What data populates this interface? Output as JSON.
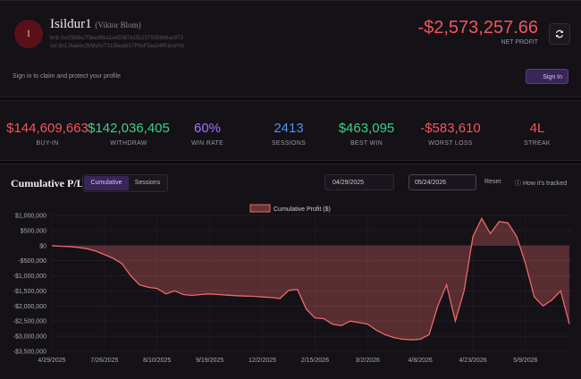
{
  "header": {
    "avatar": "I",
    "name": "Isildur1",
    "real_name": "(Viktor Blom)",
    "address_1": "bnb 0xcf3bf9a7f3eed9ba1ee5387e15c2379388b6ac873",
    "address_2": "sol 8n1J6aebv2bMy5nT315boabS7P9sF5ea34Ri1kxrHd",
    "net_profit": "-$2,573,257.66",
    "net_profit_label": "NET PROFIT",
    "claim_text": "Sign in to claim and protect your profile",
    "sign_in": "Sign In"
  },
  "stats": [
    {
      "value": "$144,609,663",
      "label": "BUY-IN",
      "color": "#f0565a"
    },
    {
      "value": "$142,036,405",
      "label": "WITHDRAW",
      "color": "#3ecf83"
    },
    {
      "value": "60%",
      "label": "WIN RATE",
      "color": "#a872f5"
    },
    {
      "value": "2413",
      "label": "SESSIONS",
      "color": "#4f8ef0"
    },
    {
      "value": "$463,095",
      "label": "BEST WIN",
      "color": "#3ecf83"
    },
    {
      "value": "-$583,610",
      "label": "WORST LOSS",
      "color": "#f0565a"
    },
    {
      "value": "4L",
      "label": "STREAK",
      "color": "#f0565a"
    }
  ],
  "panel": {
    "title": "Cumulative P/L",
    "tabs": [
      "Cumulative",
      "Sessions"
    ],
    "date_from": "04/29/2025",
    "date_to": "05/24/2026",
    "reset": "Reset",
    "help": "How it's tracked"
  },
  "chart_data": {
    "type": "line",
    "grid": true,
    "categories": [
      "4/29/2025",
      null,
      null,
      null,
      null,
      null,
      "7/26/2025",
      null,
      null,
      null,
      null,
      null,
      "8/10/2025",
      null,
      null,
      null,
      null,
      null,
      "9/19/2025",
      null,
      null,
      null,
      null,
      null,
      "12/2/2025",
      null,
      null,
      null,
      null,
      null,
      "2/15/2026",
      null,
      null,
      null,
      null,
      null,
      "3/2/2026",
      null,
      null,
      null,
      null,
      null,
      "4/8/2026",
      null,
      null,
      null,
      null,
      null,
      "4/23/2026",
      null,
      null,
      null,
      null,
      null,
      "5/9/2026",
      null,
      null,
      null,
      null,
      null
    ],
    "series": [
      {
        "name": "Cumulative Profit ($)",
        "color": "#e86a6a",
        "values": [
          0,
          -20000,
          -30000,
          -60000,
          -100000,
          -180000,
          -300000,
          -420000,
          -600000,
          -1000000,
          -1300000,
          -1380000,
          -1420000,
          -1600000,
          -1500000,
          -1620000,
          -1650000,
          -1620000,
          -1600000,
          -1620000,
          -1640000,
          -1660000,
          -1670000,
          -1680000,
          -1700000,
          -1720000,
          -1750000,
          -1480000,
          -1450000,
          -2100000,
          -2400000,
          -2420000,
          -2600000,
          -2650000,
          -2500000,
          -2550000,
          -2600000,
          -2800000,
          -2950000,
          -3050000,
          -3100000,
          -3120000,
          -3100000,
          -2950000,
          -2000000,
          -1300000,
          -2500000,
          -1500000,
          300000,
          900000,
          400000,
          800000,
          750000,
          300000,
          -600000,
          -1700000,
          -2000000,
          -1800000,
          -1500000,
          -2600000
        ]
      }
    ],
    "ylim": [
      -3500000,
      1000000
    ],
    "yticks": [
      {
        "value": 1000000,
        "label": "$1,000,000"
      },
      {
        "value": 500000,
        "label": "$500,000"
      },
      {
        "value": 0,
        "label": "$0"
      },
      {
        "value": -500000,
        "label": "-$500,000"
      },
      {
        "value": -1000000,
        "label": "-$1,000,000"
      },
      {
        "value": -1500000,
        "label": "-$1,500,000"
      },
      {
        "value": -2000000,
        "label": "-$2,000,000"
      },
      {
        "value": -2500000,
        "label": "-$2,500,000"
      },
      {
        "value": -3000000,
        "label": "-$3,000,000"
      },
      {
        "value": -3500000,
        "label": "-$3,500,000"
      }
    ]
  }
}
